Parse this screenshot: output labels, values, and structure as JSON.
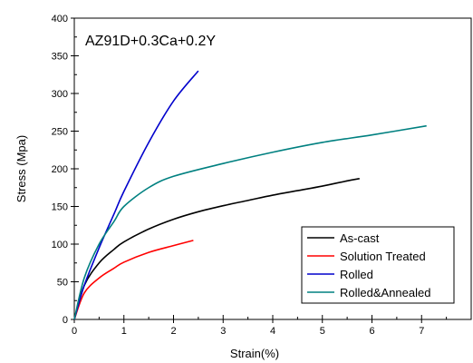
{
  "chart_data": {
    "type": "line",
    "title": "",
    "annotation": "AZ91D+0.3Ca+0.2Y",
    "xlabel": "Strain(%)",
    "ylabel": "Stress (Mpa)",
    "xlim": [
      0,
      8
    ],
    "ylim": [
      0,
      400
    ],
    "xticks": [
      0,
      1,
      2,
      3,
      4,
      5,
      6,
      7
    ],
    "yticks": [
      0,
      50,
      100,
      150,
      200,
      250,
      300,
      350,
      400
    ],
    "grid": false,
    "legend_position": "bottom-right",
    "series": [
      {
        "name": "As-cast",
        "color": "#000000",
        "x": [
          0,
          0.2,
          0.5,
          0.8,
          1.0,
          1.5,
          2.0,
          2.5,
          3.0,
          3.5,
          4.0,
          4.5,
          5.0,
          5.5,
          5.75
        ],
        "y": [
          0,
          45,
          75,
          93,
          103,
          120,
          133,
          143,
          151,
          158,
          165,
          171,
          177,
          184,
          187
        ]
      },
      {
        "name": "Solution Treated",
        "color": "#ff0000",
        "x": [
          0,
          0.2,
          0.5,
          0.8,
          1.0,
          1.5,
          2.0,
          2.4
        ],
        "y": [
          0,
          35,
          55,
          68,
          76,
          89,
          98,
          105
        ]
      },
      {
        "name": "Rolled",
        "color": "#0000cc",
        "x": [
          0,
          0.2,
          0.5,
          0.8,
          1.0,
          1.5,
          2.0,
          2.5
        ],
        "y": [
          0,
          45,
          95,
          140,
          170,
          235,
          290,
          330
        ]
      },
      {
        "name": "Rolled&Annealed",
        "color": "#008080",
        "x": [
          0,
          0.2,
          0.5,
          0.8,
          1.0,
          1.5,
          2.0,
          3.0,
          4.0,
          5.0,
          6.0,
          7.1
        ],
        "y": [
          0,
          55,
          100,
          130,
          150,
          175,
          190,
          207,
          222,
          235,
          245,
          257
        ]
      }
    ]
  }
}
